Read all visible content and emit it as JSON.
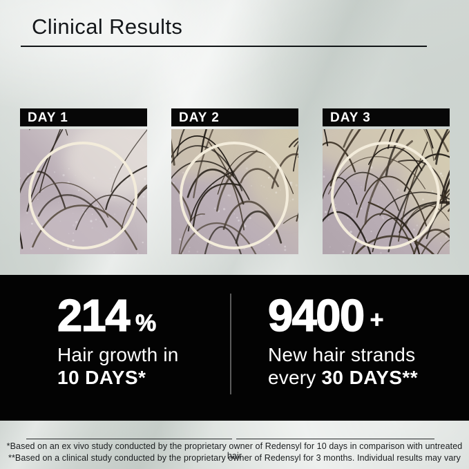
{
  "header": {
    "title": "Clinical Results"
  },
  "panels": [
    {
      "label": "DAY 1"
    },
    {
      "label": "DAY 2"
    },
    {
      "label": "DAY 3"
    }
  ],
  "stats": {
    "left": {
      "value": "214",
      "unit": "%",
      "desc_line1": "Hair growth in",
      "desc_line2": "10 DAYS*"
    },
    "right": {
      "value": "9400",
      "unit": "+",
      "desc_line1": "New hair strands",
      "desc_line2_regular": "every ",
      "desc_line2_bold": "30 DAYS**"
    }
  },
  "footnotes": {
    "line1": "*Based on an ex vivo study conducted by the proprietary owner of Redensyl for 10 days in comparison with untreated hair",
    "line2": "**Based on a clinical study conducted by the proprietary owner of Redensyl for 3 months. Individual results may vary"
  },
  "colors": {
    "background": "#d5dbd7",
    "band": "#030303",
    "circle_stroke": "#f3ecdb",
    "divider": "#5c5c5c",
    "title_text": "#14171a"
  }
}
